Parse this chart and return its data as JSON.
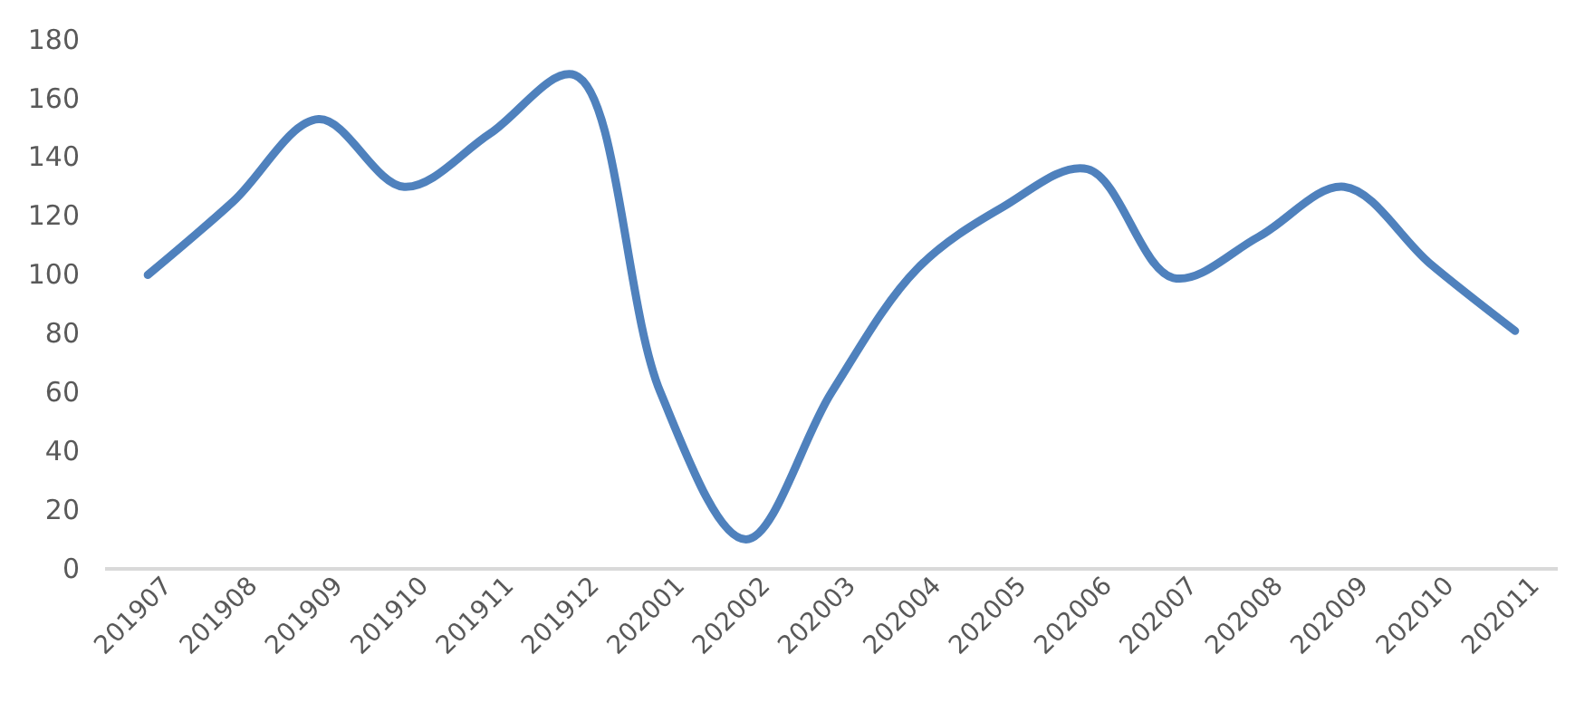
{
  "chart_data": {
    "type": "line",
    "categories": [
      "201907",
      "201908",
      "201909",
      "201910",
      "201911",
      "201912",
      "202001",
      "202002",
      "202003",
      "202004",
      "202005",
      "202006",
      "202007",
      "202008",
      "202009",
      "202010",
      "202011"
    ],
    "series": [
      {
        "color": "#4f81bd",
        "values": [
          100,
          125,
          153,
          130,
          148,
          168,
          60,
          10,
          60,
          102,
          123,
          136,
          99,
          113,
          130,
          104,
          81
        ]
      }
    ],
    "ylim": [
      0,
      180
    ],
    "yticks": [
      0,
      20,
      40,
      60,
      80,
      100,
      120,
      140,
      160,
      180
    ],
    "grid": false,
    "marker": "none",
    "line_style": "solid"
  }
}
